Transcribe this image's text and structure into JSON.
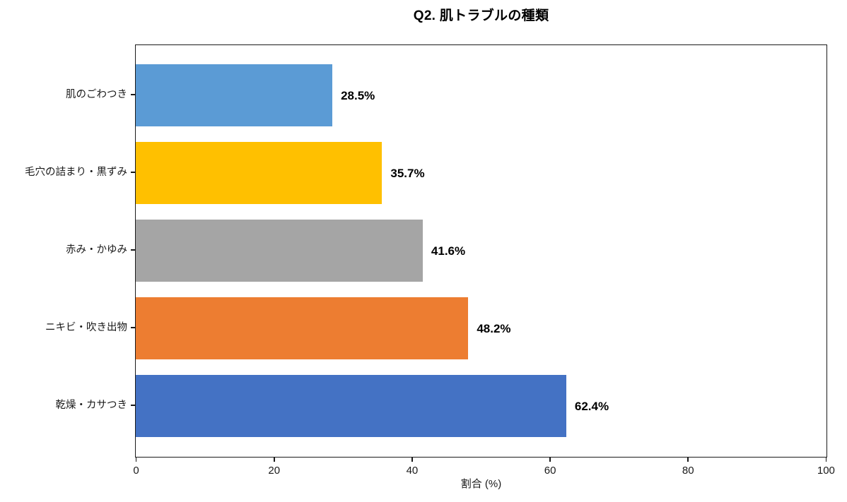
{
  "chart_data": {
    "type": "bar",
    "orientation": "horizontal",
    "title": "Q2. 肌トラブルの種類",
    "xlabel": "割合 (%)",
    "ylabel": "",
    "categories": [
      "肌のごわつき",
      "毛穴の詰まり・黒ずみ",
      "赤み・かゆみ",
      "ニキビ・吹き出物",
      "乾燥・カサつき"
    ],
    "values": [
      28.5,
      35.7,
      41.6,
      48.2,
      62.4
    ],
    "value_labels": [
      "28.5%",
      "35.7%",
      "41.6%",
      "48.2%",
      "62.4%"
    ],
    "bar_colors": [
      "#5B9BD5",
      "#FFC000",
      "#A5A5A5",
      "#ED7D31",
      "#4472C4"
    ],
    "xlim": [
      0,
      100
    ],
    "x_ticks": [
      "0",
      "20",
      "40",
      "60",
      "80",
      "100"
    ],
    "grid": false,
    "legend_position": "none",
    "frame_color": "#1a1a1a"
  }
}
